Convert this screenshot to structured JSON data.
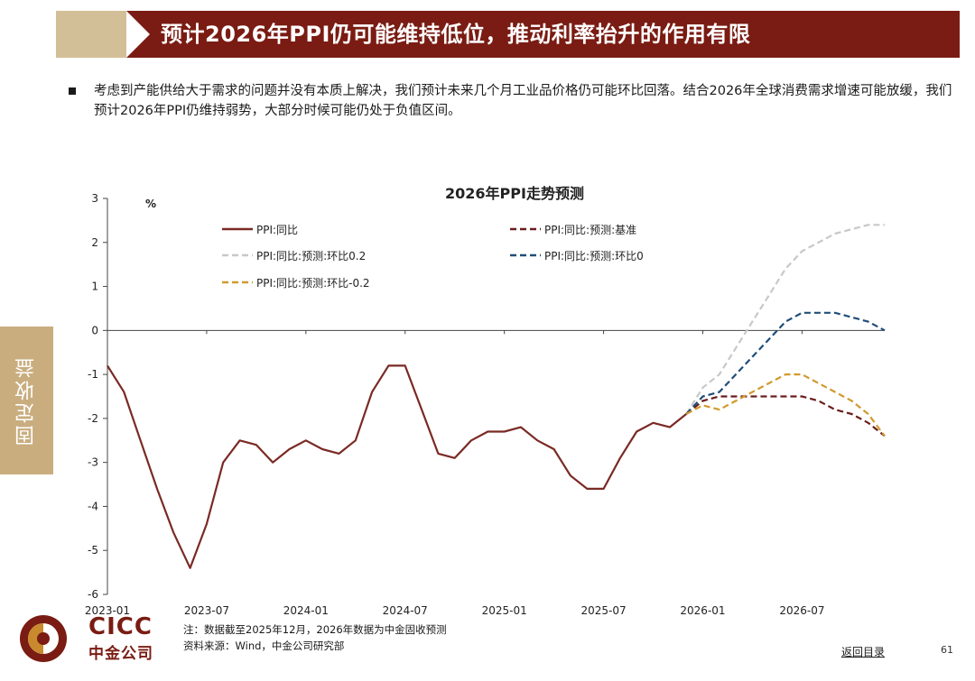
{
  "header": {
    "title": "预计2026年PPI仍可能维持低位，推动利率抬升的作用有限"
  },
  "intro_text": "考虑到产能供给大于需求的问题并没有本质上解决，我们预计未来几个月工业品价格仍可能环比回落。结合2026年全球消费需求增速可能放缓，我们预计2026年PPI仍维持弱势，大部分时候可能仍处于负值区间。",
  "side_tab": "固定收益",
  "logo": {
    "en": "CICC",
    "cn": "中金公司"
  },
  "footer": {
    "note": "注：数据截至2025年12月，2026年数据为中金固收预测",
    "source": "资料来源：Wind，中金公司研究部",
    "back_link": "返回目录",
    "page_number": "61"
  },
  "colors": {
    "banner_red": "#7a1c13",
    "banner_tan": "#d3bf97",
    "actual": "#7a2a24",
    "baseline": "#6b1d1d",
    "mom_plus": "#c8c8c8",
    "mom_zero": "#1f4e79",
    "mom_minus": "#d19a2e"
  },
  "chart_data": {
    "type": "line",
    "title": "2026年PPI走势预测",
    "ylabel": "%",
    "ylim": [
      -6,
      3
    ],
    "yticks": [
      "3",
      "2",
      "1",
      "0",
      "-1",
      "-2",
      "-3",
      "-4",
      "-5",
      "-6"
    ],
    "xticks": [
      "2023-01",
      "2023-07",
      "2024-01",
      "2024-07",
      "2025-01",
      "2025-07",
      "2026-01",
      "2026-07"
    ],
    "xtick_index": [
      0,
      6,
      12,
      18,
      24,
      30,
      36,
      42
    ],
    "x_count": 48,
    "series": [
      {
        "name": "PPI:同比",
        "color": "#7a2a24",
        "dash": "solid",
        "start_index": 0,
        "values": [
          -0.8,
          -1.4,
          -2.5,
          -3.6,
          -4.6,
          -5.4,
          -4.4,
          -3.0,
          -2.5,
          -2.6,
          -3.0,
          -2.7,
          -2.5,
          -2.7,
          -2.8,
          -2.5,
          -1.4,
          -0.8,
          -0.8,
          -1.8,
          -2.8,
          -2.9,
          -2.5,
          -2.3,
          -2.3,
          -2.2,
          -2.5,
          -2.7,
          -3.3,
          -3.6,
          -3.6,
          -2.9,
          -2.3,
          -2.1,
          -2.2,
          -1.9
        ]
      },
      {
        "name": "PPI:同比:预测:基准",
        "color": "#6b1d1d",
        "dash": "dashed",
        "start_index": 35,
        "values": [
          -1.9,
          -1.6,
          -1.5,
          -1.5,
          -1.5,
          -1.5,
          -1.5,
          -1.5,
          -1.6,
          -1.8,
          -1.9,
          -2.1,
          -2.4
        ]
      },
      {
        "name": "PPI:同比:预测:环比0.2",
        "color": "#c8c8c8",
        "dash": "dashed",
        "start_index": 35,
        "values": [
          -1.9,
          -1.3,
          -1.0,
          -0.4,
          0.2,
          0.8,
          1.4,
          1.8,
          2.0,
          2.2,
          2.3,
          2.4,
          2.4
        ]
      },
      {
        "name": "PPI:同比:预测:环比0",
        "color": "#1f4e79",
        "dash": "dashed",
        "start_index": 35,
        "values": [
          -1.9,
          -1.5,
          -1.4,
          -1.0,
          -0.6,
          -0.2,
          0.2,
          0.4,
          0.4,
          0.4,
          0.3,
          0.2,
          0.0
        ]
      },
      {
        "name": "PPI:同比:预测:环比-0.2",
        "color": "#d19a2e",
        "dash": "dashed",
        "start_index": 35,
        "values": [
          -1.9,
          -1.7,
          -1.8,
          -1.6,
          -1.4,
          -1.2,
          -1.0,
          -1.0,
          -1.2,
          -1.4,
          -1.6,
          -1.9,
          -2.4
        ]
      }
    ],
    "legend": [
      {
        "label": "PPI:同比",
        "series": 0
      },
      {
        "label": "PPI:同比:预测:基准",
        "series": 1
      },
      {
        "label": "PPI:同比:预测:环比0.2",
        "series": 2
      },
      {
        "label": "PPI:同比:预测:环比0",
        "series": 3
      },
      {
        "label": "PPI:同比:预测:环比-0.2",
        "series": 4
      }
    ]
  }
}
